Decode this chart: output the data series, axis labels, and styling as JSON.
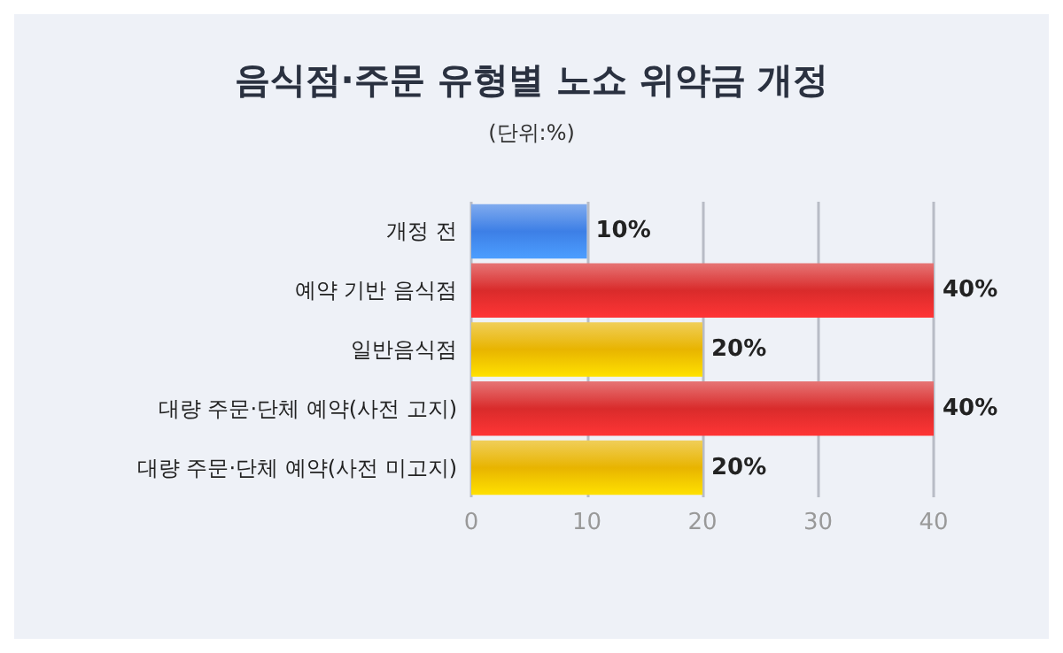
{
  "chart_data": {
    "type": "bar",
    "orientation": "horizontal",
    "title": "음식점·주문 유형별 노쇼 위약금 개정",
    "subtitle": "(단위:%)",
    "categories": [
      "개정 전",
      "예약 기반 음식점",
      "일반음식점",
      "대량 주문·단체 예약(사전 고지)",
      "대량 주문·단체 예약(사전 미고지)"
    ],
    "values": [
      10,
      40,
      20,
      40,
      20
    ],
    "colors": [
      "#3d7fe6",
      "#d92b2b",
      "#e8b400",
      "#d92b2b",
      "#e8b400"
    ],
    "value_labels": [
      "10%",
      "40%",
      "20%",
      "40%",
      "20%"
    ],
    "xlim": [
      0,
      40
    ],
    "xticks": [
      0,
      10,
      20,
      30,
      40
    ],
    "grid": "x"
  }
}
